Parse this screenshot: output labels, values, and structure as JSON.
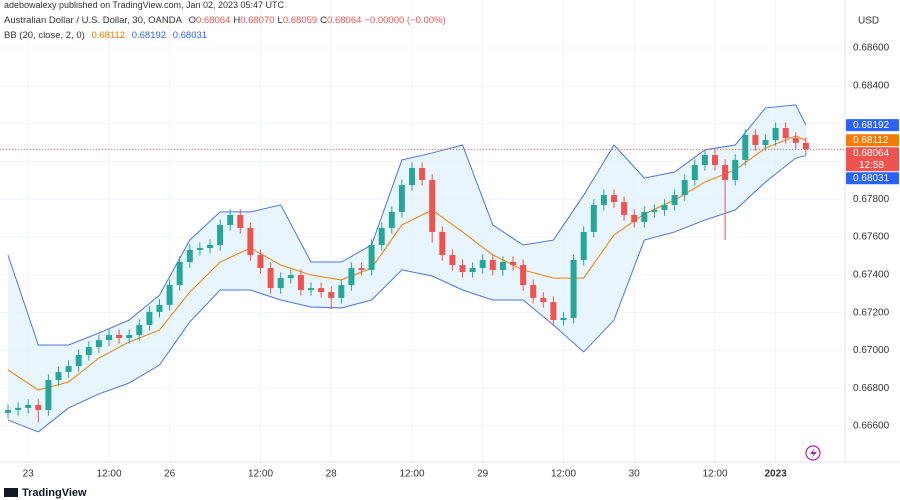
{
  "header": {
    "attribution": "adebowalexy published on TradingView.com, Jan 02, 2023 05:47 UTC",
    "footer": "TradingView"
  },
  "chart_data": {
    "type": "candlestick",
    "symbol": "Australian Dollar / U.S. Dollar, 30, OANDA",
    "readout": [
      {
        "key": "O",
        "value": "0.68064"
      },
      {
        "key": "H",
        "value": "0.68070"
      },
      {
        "key": "L",
        "value": "0.68059"
      },
      {
        "key": "C",
        "value": "0.68064"
      }
    ],
    "change": "−0.00000 (−0.00%)",
    "currency": "USD",
    "up_color": "#26a69a",
    "down_color": "#ef5350",
    "grid": true,
    "ylim": [
      0.6641,
      0.68854
    ],
    "yticks": [
      {
        "value": 0.686,
        "label": "0.68600"
      },
      {
        "value": 0.684,
        "label": "0.68400"
      },
      {
        "value": 0.682,
        "label": "0.68200"
      },
      {
        "value": 0.68,
        "label": "0.68000"
      },
      {
        "value": 0.678,
        "label": "0.67800"
      },
      {
        "value": 0.676,
        "label": "0.67600"
      },
      {
        "value": 0.674,
        "label": "0.67400"
      },
      {
        "value": 0.672,
        "label": "0.67200"
      },
      {
        "value": 0.67,
        "label": "0.67000"
      },
      {
        "value": 0.668,
        "label": "0.66800"
      },
      {
        "value": 0.666,
        "label": "0.66600"
      }
    ],
    "categories": [
      null,
      null,
      "23",
      null,
      null,
      null,
      null,
      null,
      null,
      null,
      "12:00",
      null,
      null,
      null,
      null,
      null,
      "26",
      null,
      null,
      null,
      null,
      null,
      null,
      null,
      null,
      "12:00",
      null,
      null,
      null,
      null,
      null,
      null,
      "28",
      null,
      null,
      null,
      null,
      null,
      null,
      null,
      "12:00",
      null,
      null,
      null,
      null,
      null,
      null,
      "29",
      null,
      null,
      null,
      null,
      null,
      null,
      null,
      "12:00",
      null,
      null,
      null,
      null,
      null,
      null,
      "30",
      null,
      null,
      null,
      null,
      null,
      null,
      null,
      "12:00",
      null,
      null,
      null,
      null,
      null,
      "2023",
      null,
      null,
      null
    ],
    "open": [
      0.6667,
      0.66685,
      0.66696,
      0.66712,
      0.66685,
      0.66844,
      0.66886,
      0.66918,
      0.66976,
      0.67018,
      0.67055,
      0.67082,
      0.67066,
      0.67082,
      0.67135,
      0.67204,
      0.67241,
      0.67346,
      0.67468,
      0.67532,
      0.67542,
      0.67558,
      0.67664,
      0.67717,
      0.67648,
      0.67505,
      0.67436,
      0.6733,
      0.67383,
      0.67399,
      0.6732,
      0.6733,
      0.67309,
      0.67278,
      0.67346,
      0.67436,
      0.67426,
      0.67558,
      0.67648,
      0.67733,
      0.67875,
      0.67965,
      0.67902,
      0.67627,
      0.67505,
      0.67452,
      0.67415,
      0.67436,
      0.67479,
      0.67426,
      0.67468,
      0.67452,
      0.67346,
      0.67278,
      0.67256,
      0.67161,
      0.67172,
      0.67479,
      0.67627,
      0.6777,
      0.67822,
      0.67785,
      0.67717,
      0.6768,
      0.67733,
      0.67743,
      0.6777,
      0.67822,
      0.67902,
      0.67981,
      0.68034,
      0.67981,
      0.67902,
      0.68008,
      0.6814,
      0.68087,
      0.68113,
      0.68177,
      0.68124,
      0.68098
    ],
    "high": [
      0.66715,
      0.66726,
      0.66742,
      0.66742,
      0.66874,
      0.66916,
      0.66948,
      0.67006,
      0.67048,
      0.67085,
      0.67112,
      0.67112,
      0.67112,
      0.67165,
      0.67234,
      0.67271,
      0.67376,
      0.67498,
      0.67562,
      0.67572,
      0.67588,
      0.67694,
      0.67747,
      0.67747,
      0.67678,
      0.67535,
      0.67466,
      0.67413,
      0.67429,
      0.67429,
      0.6736,
      0.6736,
      0.67339,
      0.67376,
      0.67466,
      0.67466,
      0.67588,
      0.67678,
      0.67763,
      0.67905,
      0.67995,
      0.67995,
      0.67932,
      0.67657,
      0.67535,
      0.67482,
      0.67466,
      0.67509,
      0.67509,
      0.67498,
      0.67498,
      0.67482,
      0.67376,
      0.67308,
      0.67286,
      0.67202,
      0.67509,
      0.67657,
      0.678,
      0.67852,
      0.67852,
      0.67815,
      0.67747,
      0.67763,
      0.67773,
      0.678,
      0.67852,
      0.67932,
      0.68011,
      0.68064,
      0.68064,
      0.68011,
      0.68038,
      0.6817,
      0.6817,
      0.68143,
      0.68207,
      0.68207,
      0.68154,
      0.68128
    ],
    "low": [
      0.6664,
      0.66655,
      0.66666,
      0.6662,
      0.66655,
      0.66814,
      0.66856,
      0.66888,
      0.66946,
      0.66988,
      0.67025,
      0.67036,
      0.67036,
      0.67052,
      0.67105,
      0.67174,
      0.67211,
      0.67316,
      0.67438,
      0.67502,
      0.67512,
      0.67528,
      0.67634,
      0.67618,
      0.67475,
      0.67406,
      0.673,
      0.673,
      0.67353,
      0.6729,
      0.6729,
      0.67279,
      0.6722,
      0.67248,
      0.67316,
      0.67396,
      0.67396,
      0.67528,
      0.67618,
      0.67703,
      0.67845,
      0.67872,
      0.6757,
      0.67475,
      0.67422,
      0.67385,
      0.67385,
      0.67406,
      0.67396,
      0.67396,
      0.67422,
      0.67316,
      0.67248,
      0.67226,
      0.67131,
      0.67131,
      0.67142,
      0.67449,
      0.67597,
      0.6774,
      0.67755,
      0.67687,
      0.6765,
      0.6765,
      0.67703,
      0.67713,
      0.6774,
      0.67792,
      0.67872,
      0.67951,
      0.67951,
      0.67584,
      0.67872,
      0.67978,
      0.68057,
      0.68057,
      0.68083,
      0.68094,
      0.68068,
      0.68034
    ],
    "close": [
      0.66685,
      0.66696,
      0.66712,
      0.66685,
      0.66844,
      0.66886,
      0.66918,
      0.66976,
      0.67018,
      0.67055,
      0.67082,
      0.67066,
      0.67082,
      0.67135,
      0.67204,
      0.67241,
      0.67346,
      0.67468,
      0.67532,
      0.67542,
      0.67558,
      0.67664,
      0.67717,
      0.67648,
      0.67505,
      0.67436,
      0.6733,
      0.67383,
      0.67399,
      0.6732,
      0.6733,
      0.67309,
      0.67278,
      0.67346,
      0.67436,
      0.67426,
      0.67558,
      0.67648,
      0.67733,
      0.67875,
      0.67965,
      0.67902,
      0.67627,
      0.67505,
      0.67452,
      0.67415,
      0.67436,
      0.67479,
      0.67426,
      0.67468,
      0.67452,
      0.67346,
      0.67278,
      0.67256,
      0.67161,
      0.67172,
      0.67479,
      0.67627,
      0.6777,
      0.67822,
      0.67785,
      0.67717,
      0.6768,
      0.67733,
      0.67743,
      0.6777,
      0.67822,
      0.67902,
      0.67981,
      0.68034,
      0.67981,
      0.67902,
      0.68008,
      0.6814,
      0.68087,
      0.68113,
      0.68177,
      0.68124,
      0.68098,
      0.68064
    ],
    "bands": {
      "label": "BB (20, close, 2, 0)",
      "fill": "#e3f2fd",
      "x": [
        0,
        3,
        6,
        9,
        12,
        15,
        18,
        21,
        24,
        27,
        30,
        33,
        36,
        39,
        42,
        45,
        48,
        51,
        54,
        57,
        60,
        63,
        66,
        69,
        72,
        75,
        78,
        79
      ],
      "upper": {
        "color": "#4c74e0",
        "values": [
          0.67505,
          0.67029,
          0.67029,
          0.67092,
          0.67161,
          0.67293,
          0.67584,
          0.67733,
          0.67733,
          0.6777,
          0.67468,
          0.67468,
          0.67558,
          0.68008,
          0.68045,
          0.68087,
          0.67664,
          0.67558,
          0.67584,
          0.67822,
          0.68087,
          0.67912,
          0.67944,
          0.68061,
          0.68087,
          0.68283,
          0.68299,
          0.68192
        ]
      },
      "basis": {
        "color": "#f57c00",
        "values": [
          0.66897,
          0.66791,
          0.66833,
          0.6696,
          0.67045,
          0.67108,
          0.67309,
          0.67468,
          0.67542,
          0.67452,
          0.67399,
          0.67373,
          0.67436,
          0.67664,
          0.67743,
          0.67627,
          0.67505,
          0.67426,
          0.67383,
          0.67383,
          0.67611,
          0.67722,
          0.67796,
          0.67891,
          0.67955,
          0.68071,
          0.68135,
          0.68112
        ]
      },
      "lower": {
        "color": "#4c74e0",
        "values": [
          0.66632,
          0.66569,
          0.66696,
          0.6677,
          0.66828,
          0.66923,
          0.67151,
          0.6732,
          0.6732,
          0.67267,
          0.6723,
          0.67225,
          0.67267,
          0.67426,
          0.67394,
          0.6732,
          0.67267,
          0.67267,
          0.67135,
          0.66992,
          0.67161,
          0.67584,
          0.67627,
          0.6769,
          0.67743,
          0.67891,
          0.68018,
          0.68031
        ]
      }
    },
    "price_tags": [
      {
        "value": 0.68192,
        "label": "0.68192",
        "color": "#2962ff"
      },
      {
        "value": 0.68112,
        "label": "0.68112",
        "color": "#f57c00"
      },
      {
        "value": 0.68064,
        "label": "0.68064",
        "color": "#ef5350",
        "sub": "12:58"
      },
      {
        "value": 0.68031,
        "label": "0.68031",
        "color": "#2962ff"
      }
    ]
  }
}
